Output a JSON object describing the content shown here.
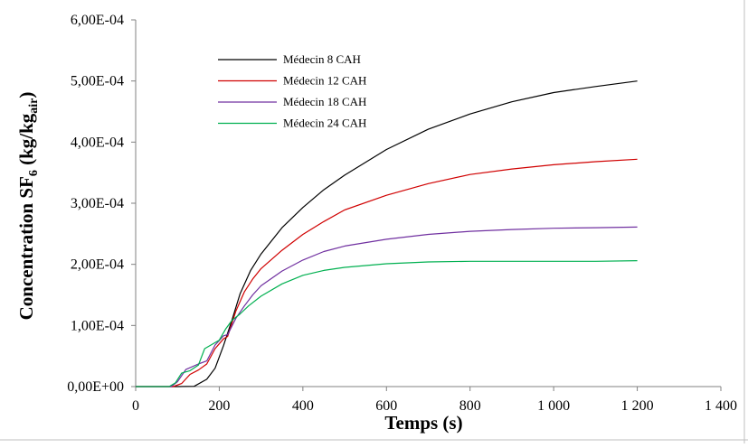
{
  "chart_data": {
    "type": "line",
    "title": "",
    "xlabel": "Temps (s)",
    "ylabel": {
      "main": "Concentration SF",
      "sub1": "6",
      "mid": " (kg/kg",
      "sub2": "air",
      "end": ")"
    },
    "xlim": [
      0,
      1400
    ],
    "ylim": [
      0,
      0.0006
    ],
    "xticks": [
      0,
      200,
      400,
      600,
      800,
      1000,
      1200,
      1400
    ],
    "xtick_labels": [
      "0",
      "200",
      "400",
      "600",
      "800",
      "1 000",
      "1 200",
      "1 400"
    ],
    "yticks": [
      0,
      0.0001,
      0.0002,
      0.0003,
      0.0004,
      0.0005,
      0.0006
    ],
    "ytick_labels": [
      "0,00E+00",
      "1,00E-04",
      "2,00E-04",
      "3,00E-04",
      "4,00E-04",
      "5,00E-04",
      "6,00E-04"
    ],
    "grid": false,
    "legend_position": "top-left",
    "series": [
      {
        "name": "Médecin 8 CAH",
        "color": "#000000",
        "x": [
          0,
          100,
          140,
          170,
          190,
          210,
          230,
          250,
          275,
          300,
          350,
          400,
          450,
          500,
          600,
          700,
          800,
          900,
          1000,
          1100,
          1200
        ],
        "values": [
          0,
          0,
          5e-07,
          1.2e-05,
          3e-05,
          6.7e-05,
          0.000108,
          0.000152,
          0.00019,
          0.000217,
          0.00026,
          0.000293,
          0.000322,
          0.000346,
          0.000388,
          0.000421,
          0.000446,
          0.000466,
          0.000481,
          0.000491,
          0.0005
        ]
      },
      {
        "name": "Médecin 12 CAH",
        "color": "#d00000",
        "x": [
          0,
          90,
          110,
          130,
          150,
          170,
          190,
          210,
          220,
          240,
          260,
          280,
          300,
          350,
          400,
          450,
          500,
          600,
          700,
          800,
          900,
          1000,
          1100,
          1200
        ],
        "values": [
          0,
          0,
          5e-06,
          2e-05,
          2.7e-05,
          3.7e-05,
          6.2e-05,
          7.8e-05,
          8.2e-05,
          0.000124,
          0.000155,
          0.000176,
          0.000193,
          0.000223,
          0.000249,
          0.00027,
          0.000289,
          0.000313,
          0.000332,
          0.000347,
          0.000356,
          0.000363,
          0.000368,
          0.000372
        ]
      },
      {
        "name": "Médecin 18 CAH",
        "color": "#7030a0",
        "x": [
          0,
          85,
          100,
          120,
          150,
          170,
          190,
          210,
          220,
          240,
          260,
          280,
          300,
          350,
          400,
          450,
          500,
          600,
          700,
          800,
          900,
          1000,
          1100,
          1200
        ],
        "values": [
          0,
          0,
          8e-06,
          2.8e-05,
          3.7e-05,
          4.2e-05,
          6.8e-05,
          8.3e-05,
          8.5e-05,
          0.000112,
          0.000132,
          0.00015,
          0.000165,
          0.000189,
          0.000207,
          0.000221,
          0.00023,
          0.000241,
          0.000249,
          0.000254,
          0.000257,
          0.000259,
          0.00026,
          0.000261
        ]
      },
      {
        "name": "Médecin 24 CAH",
        "color": "#00b050",
        "x": [
          0,
          80,
          95,
          110,
          130,
          150,
          165,
          180,
          200,
          215,
          230,
          250,
          270,
          300,
          350,
          400,
          450,
          500,
          600,
          700,
          800,
          900,
          1000,
          1100,
          1200
        ],
        "values": [
          0,
          0,
          6e-06,
          2.2e-05,
          2.6e-05,
          3.5e-05,
          6.2e-05,
          6.8e-05,
          7.6e-05,
          9.4e-05,
          0.000108,
          0.000119,
          0.000132,
          0.000148,
          0.000168,
          0.000182,
          0.00019,
          0.000195,
          0.000201,
          0.000204,
          0.000205,
          0.000205,
          0.000205,
          0.000205,
          0.000206
        ]
      }
    ]
  }
}
